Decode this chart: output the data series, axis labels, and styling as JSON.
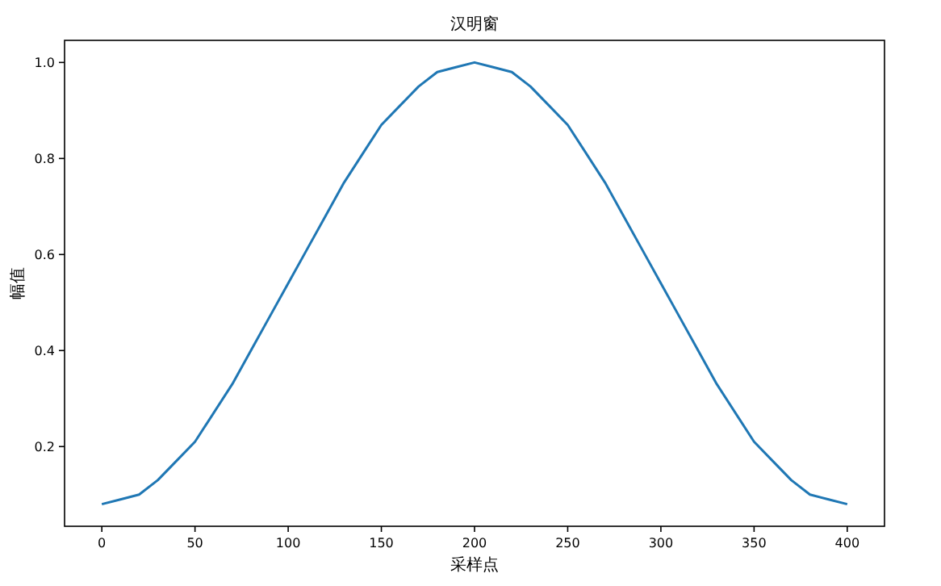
{
  "chart_data": {
    "type": "line",
    "title": "汉明窗",
    "xlabel": "采样点",
    "ylabel": "幅值",
    "x": [
      0,
      10,
      20,
      30,
      40,
      50,
      60,
      70,
      80,
      90,
      100,
      110,
      120,
      130,
      140,
      150,
      160,
      170,
      180,
      190,
      200,
      210,
      220,
      230,
      240,
      250,
      260,
      270,
      280,
      290,
      300,
      310,
      320,
      330,
      340,
      350,
      360,
      370,
      380,
      390,
      400
    ],
    "series": [
      {
        "color": "#1f77b4",
        "values": [
          0.08,
          0.09,
          0.1,
          0.13,
          0.17,
          0.21,
          0.27,
          0.33,
          0.4,
          0.47,
          0.54,
          0.61,
          0.68,
          0.75,
          0.81,
          0.87,
          0.91,
          0.95,
          0.98,
          0.99,
          1.0,
          0.99,
          0.98,
          0.95,
          0.91,
          0.87,
          0.81,
          0.75,
          0.68,
          0.61,
          0.54,
          0.47,
          0.4,
          0.33,
          0.27,
          0.21,
          0.17,
          0.13,
          0.1,
          0.09,
          0.08
        ]
      }
    ],
    "xlim": [
      -20,
      420
    ],
    "ylim": [
      0.034,
      1.046
    ],
    "xticks": [
      0,
      50,
      100,
      150,
      200,
      250,
      300,
      350,
      400
    ],
    "yticks": [
      0.2,
      0.4,
      0.6,
      0.8,
      {
        "value": 1,
        "label": "1.0"
      }
    ],
    "grid": false
  }
}
